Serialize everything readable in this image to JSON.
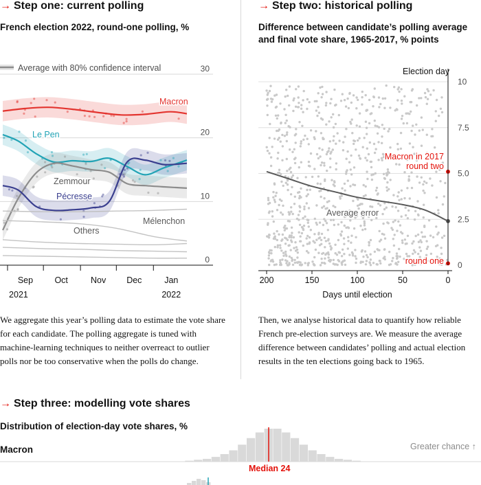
{
  "step1": {
    "title": "Step one: current polling",
    "subtitle": "French election 2022, round-one polling, %",
    "legend": "Average with 80% confidence interval",
    "body": "We aggregate this year’s polling data to estimate the vote share for each candidate. The polling aggregate is tuned with machine-learning techniques to neither overreact to outlier polls nor be too conservative when the polls do change."
  },
  "step2": {
    "title": "Step two: historical polling",
    "subtitle": "Difference between candidate’s polling average and final vote share, 1965-2017, % points",
    "election_day_label": "Election day",
    "body": "Then, we analyse historical data to quantify how reliable French pre-election surveys are. We measure the average difference between candidates’ polling and actual election results in the ten elections going back to 1965."
  },
  "step3": {
    "title": "Step three: modelling vote shares",
    "subtitle": "Distribution of election-day vote shares, %",
    "row_label": "Macron",
    "greater_chance": "Greater chance ↑",
    "median_label": "Median 24"
  },
  "colors": {
    "accent": "#e3120b",
    "macron": "#e3342f",
    "lepen": "#22a3b5",
    "pecresse": "#3a3f8f",
    "zemmour": "#8c8c8c",
    "others": "#bdbdbd",
    "dots": "#c9c9c9"
  },
  "chart_data": [
    {
      "type": "line",
      "title": "French election 2022, round-one polling, %",
      "x_ticks": [
        {
          "label": "Sep",
          "year": "2021"
        },
        {
          "label": "Oct",
          "year": ""
        },
        {
          "label": "Nov",
          "year": ""
        },
        {
          "label": "Dec",
          "year": ""
        },
        {
          "label": "Jan",
          "year": "2022"
        }
      ],
      "ylim": [
        0,
        30
      ],
      "y_ticks": [
        0,
        10,
        20,
        30
      ],
      "x_range": [
        "2021-08-28",
        "2022-01-29"
      ],
      "series": [
        {
          "name": "Macron",
          "color_key": "macron",
          "x": [
            "2021-08-28",
            "2021-09-15",
            "2021-10-05",
            "2021-10-25",
            "2021-11-15",
            "2021-12-05",
            "2021-12-25",
            "2022-01-15",
            "2022-01-29"
          ],
          "y": [
            24.2,
            24.6,
            24.8,
            24.5,
            24.0,
            23.6,
            23.7,
            24.1,
            23.8
          ]
        },
        {
          "name": "Le Pen",
          "color_key": "lepen",
          "x": [
            "2021-08-28",
            "2021-09-10",
            "2021-09-25",
            "2021-10-10",
            "2021-10-25",
            "2021-11-10",
            "2021-11-25",
            "2021-12-10",
            "2021-12-25",
            "2022-01-10",
            "2022-01-29"
          ],
          "y": [
            20.5,
            19.5,
            17.5,
            16.2,
            16.4,
            16.3,
            16.8,
            15.5,
            14.2,
            15.3,
            16.5
          ]
        },
        {
          "name": "Zemmour",
          "color_key": "zemmour",
          "x": [
            "2021-08-28",
            "2021-09-10",
            "2021-09-25",
            "2021-10-10",
            "2021-10-25",
            "2021-11-10",
            "2021-11-25",
            "2021-12-10",
            "2021-12-25",
            "2022-01-10",
            "2022-01-29"
          ],
          "y": [
            5.5,
            10.5,
            14.5,
            16.0,
            15.6,
            15.0,
            14.6,
            12.8,
            12.5,
            12.3,
            12.1
          ]
        },
        {
          "name": "Pécresse",
          "color_key": "pecresse",
          "x": [
            "2021-08-28",
            "2021-09-10",
            "2021-09-25",
            "2021-10-10",
            "2021-10-25",
            "2021-11-10",
            "2021-11-25",
            "2021-12-10",
            "2021-12-25",
            "2022-01-10",
            "2022-01-29"
          ],
          "y": [
            12.5,
            11.8,
            9.2,
            8.6,
            8.7,
            9.0,
            10.0,
            16.2,
            16.5,
            15.8,
            16.0
          ]
        },
        {
          "name": "Mélenchon",
          "color_key": "others",
          "x": [
            "2021-08-28",
            "2021-10-01",
            "2021-11-01",
            "2021-12-01",
            "2022-01-01",
            "2022-01-29"
          ],
          "y": [
            8.5,
            8.4,
            8.4,
            8.5,
            8.6,
            8.8
          ]
        },
        {
          "name": "Others",
          "color_key": "others",
          "x": [
            "2021-08-28",
            "2021-10-01",
            "2021-11-01",
            "2021-12-01",
            "2022-01-01",
            "2022-01-29"
          ],
          "y": [
            7.0,
            6.8,
            6.5,
            5.8,
            4.5,
            3.8
          ]
        },
        {
          "name": "",
          "color_key": "others",
          "x": [
            "2021-08-28",
            "2021-10-01",
            "2021-11-01",
            "2021-12-01",
            "2022-01-01",
            "2022-01-29"
          ],
          "y": [
            4.0,
            3.6,
            3.4,
            3.3,
            3.2,
            3.4
          ]
        },
        {
          "name": "",
          "color_key": "others",
          "x": [
            "2021-08-28",
            "2021-10-01",
            "2021-11-01",
            "2021-12-01",
            "2022-01-01",
            "2022-01-29"
          ],
          "y": [
            2.8,
            2.6,
            2.5,
            2.3,
            2.2,
            2.1
          ]
        },
        {
          "name": "",
          "color_key": "others",
          "x": [
            "2021-08-28",
            "2021-10-01",
            "2021-11-01",
            "2021-12-01",
            "2022-01-01",
            "2022-01-29"
          ],
          "y": [
            1.5,
            1.4,
            1.3,
            1.2,
            1.1,
            1.1
          ]
        }
      ]
    },
    {
      "type": "scatter",
      "title": "Difference between candidate’s polling average and final vote share, 1965-2017, % points",
      "xlabel": "Days until election",
      "x_ticks": [
        200,
        150,
        100,
        50,
        0
      ],
      "xlim": [
        200,
        0
      ],
      "ylim": [
        0,
        10
      ],
      "y_ticks": [
        0,
        2.5,
        5.0,
        7.5,
        10
      ],
      "y_tick_labels": [
        "0",
        "2.5",
        "5.0",
        "7.5",
        "10"
      ],
      "average_error": {
        "label": "Average error",
        "x": [
          200,
          175,
          150,
          125,
          100,
          75,
          50,
          25,
          0
        ],
        "y": [
          5.1,
          4.7,
          4.3,
          4.0,
          3.7,
          3.5,
          3.3,
          3.0,
          2.4
        ]
      },
      "highlights": [
        {
          "label": "Macron in 2017 round two",
          "label_line1": "Macron in 2017",
          "label_line2": "round two",
          "x": 0,
          "y": 5.1
        },
        {
          "label": "round one",
          "x": 0,
          "y": 0.1
        }
      ]
    },
    {
      "type": "bar",
      "title": "Distribution of election-day vote shares, %",
      "series": [
        {
          "name": "Macron",
          "x": [
            15,
            16,
            17,
            18,
            19,
            20,
            21,
            22,
            23,
            24,
            25,
            26,
            27,
            28,
            29,
            30,
            31,
            32,
            33,
            34
          ],
          "values": [
            1,
            2,
            3,
            5,
            8,
            12,
            18,
            25,
            31,
            35,
            35,
            31,
            25,
            18,
            12,
            8,
            5,
            3,
            2,
            1
          ],
          "median": 24
        }
      ]
    }
  ]
}
